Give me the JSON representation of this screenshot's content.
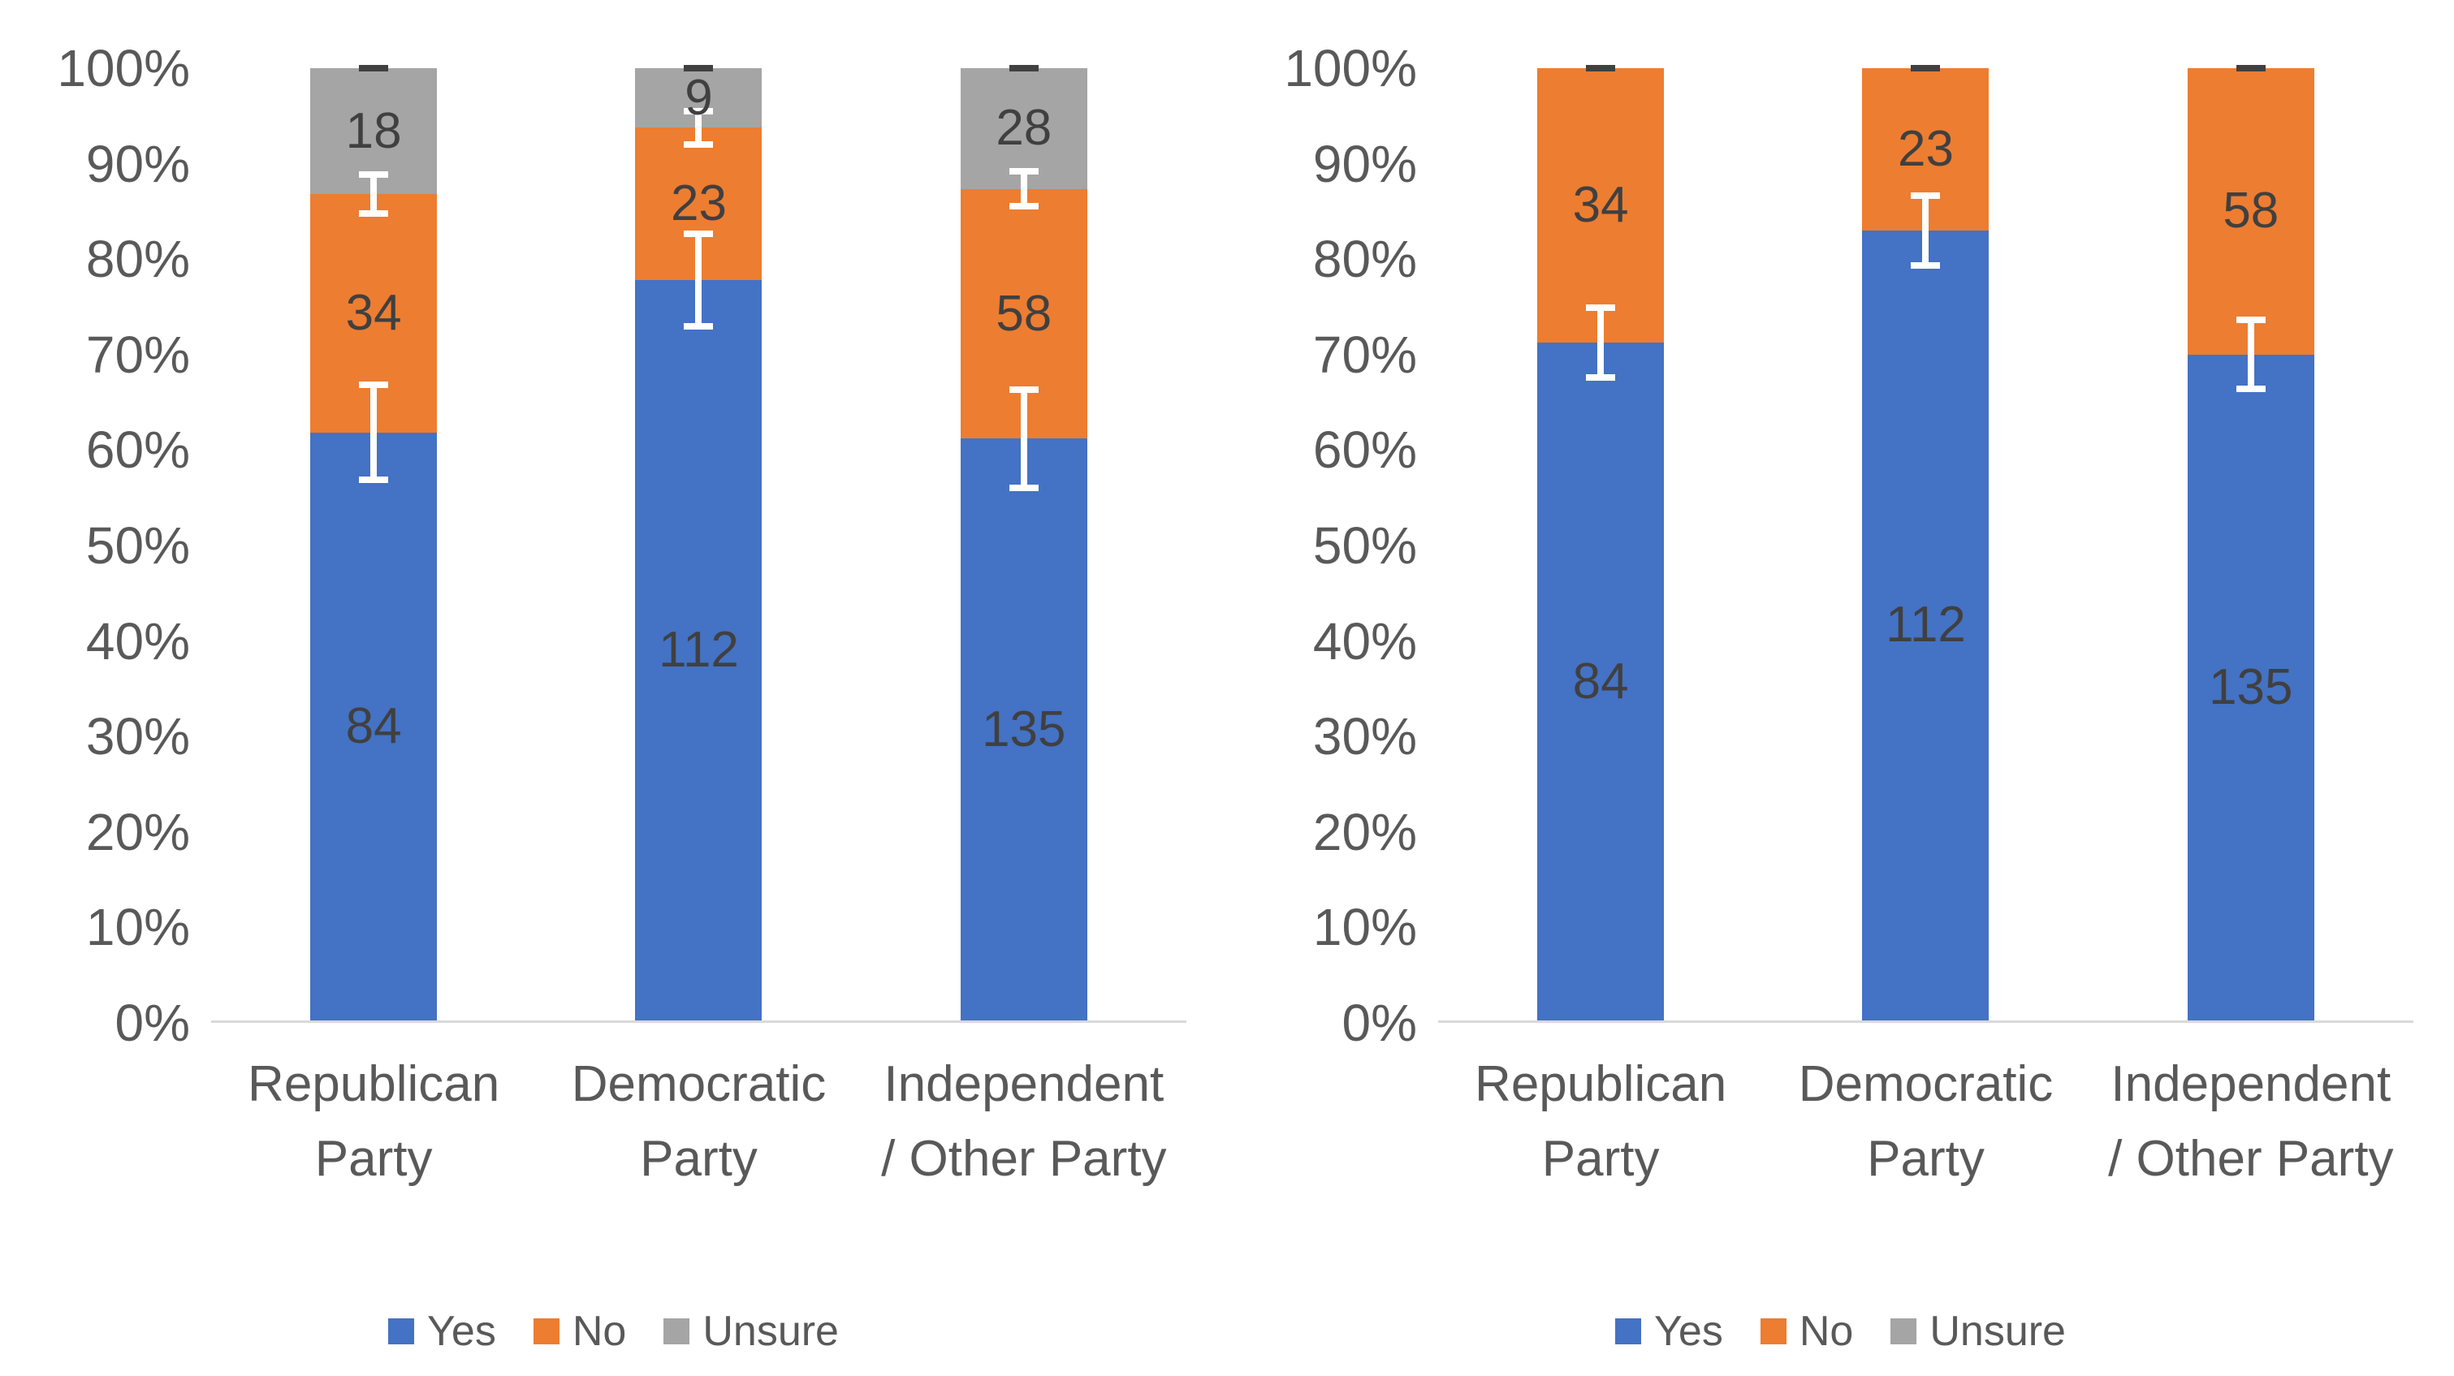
{
  "colors": {
    "yes": "#4472C4",
    "no": "#ED7D31",
    "unsure": "#A5A5A5",
    "value_label": "#404040",
    "tick_label": "#595959",
    "axis_line": "#D9D9D9",
    "error_bar": "#FFFFFF",
    "top_cap": "#404040"
  },
  "y_axis": {
    "ticks": [
      "100%",
      "90%",
      "80%",
      "70%",
      "60%",
      "50%",
      "40%",
      "30%",
      "20%",
      "10%",
      "0%"
    ]
  },
  "legend": {
    "items": [
      {
        "key": "yes",
        "label": "Yes"
      },
      {
        "key": "no",
        "label": "No"
      },
      {
        "key": "unsure",
        "label": "Unsure"
      }
    ]
  },
  "presentation": {
    "category_lines": [
      [
        "Republican",
        "Party"
      ],
      [
        "Democratic",
        "Party"
      ],
      [
        "Independent",
        "/ Other Party"
      ]
    ]
  },
  "chart_data": [
    {
      "type": "bar",
      "variant": "100% stacked column",
      "title": "",
      "categories": [
        "Republican Party",
        "Democratic Party",
        "Independent / Other Party"
      ],
      "series": [
        {
          "name": "Yes",
          "color": "#4472C4",
          "values": [
            84,
            112,
            135
          ]
        },
        {
          "name": "No",
          "color": "#ED7D31",
          "values": [
            34,
            23,
            58
          ]
        },
        {
          "name": "Unsure",
          "color": "#A5A5A5",
          "values": [
            18,
            9,
            28
          ]
        }
      ],
      "data_labels": true,
      "error_bars": [
        {
          "after_series": 1,
          "color": "#FFFFFF",
          "half_pct": [
            5.3,
            5.2,
            5.5
          ]
        },
        {
          "after_series": 2,
          "color": "#FFFFFF",
          "half_pct": [
            2.4,
            2.1,
            2.2
          ]
        }
      ],
      "top_dash": true,
      "ylim": [
        0,
        100
      ],
      "y_tick_step": 10,
      "y_format": "percent",
      "gridlines": false,
      "legend_position": "bottom",
      "legend": [
        "Yes",
        "No",
        "Unsure"
      ]
    },
    {
      "type": "bar",
      "variant": "100% stacked column",
      "title": "",
      "categories": [
        "Republican Party",
        "Democratic Party",
        "Independent / Other Party"
      ],
      "series": [
        {
          "name": "Yes",
          "color": "#4472C4",
          "values": [
            84,
            112,
            135
          ]
        },
        {
          "name": "No",
          "color": "#ED7D31",
          "values": [
            34,
            23,
            58
          ]
        },
        {
          "name": "Unsure",
          "color": "#A5A5A5",
          "values": [
            0,
            0,
            0
          ]
        }
      ],
      "data_labels": true,
      "error_bars": [
        {
          "after_series": 1,
          "color": "#FFFFFF",
          "half_pct": [
            4.0,
            4.0,
            4.0
          ]
        }
      ],
      "top_dash": true,
      "ylim": [
        0,
        100
      ],
      "y_tick_step": 10,
      "y_format": "percent",
      "gridlines": false,
      "legend_position": "bottom",
      "legend": [
        "Yes",
        "No",
        "Unsure"
      ]
    }
  ]
}
